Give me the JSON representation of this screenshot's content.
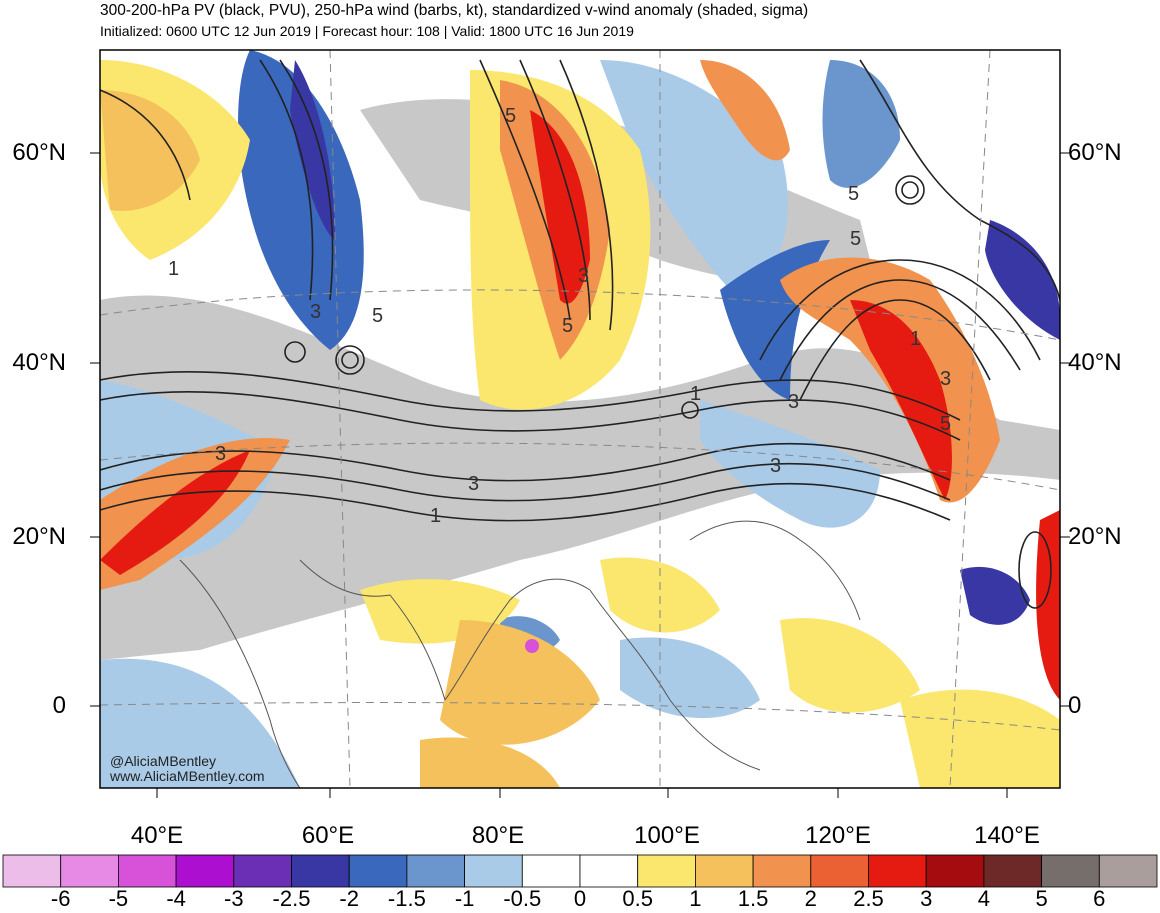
{
  "header": {
    "title": "300-200-hPa PV (black, PVU), 250-hPa wind (barbs, kt), standardized v-wind anomaly (shaded, sigma)",
    "subtitle": "Initialized: 0600 UTC 12 Jun 2019 | Forecast hour: 108 | Valid: 1800 UTC 16 Jun 2019"
  },
  "map": {
    "lat_labels": [
      "60°N",
      "40°N",
      "20°N",
      "0"
    ],
    "lon_labels": [
      "40°E",
      "60°E",
      "80°E",
      "100°E",
      "120°E",
      "140°E"
    ],
    "contour_labels": [
      "1",
      "3",
      "5"
    ],
    "credit_handle": "@AliciaMBentley",
    "credit_url": "www.AliciaMBentley.com"
  },
  "colorbar": {
    "labels": [
      "-6",
      "-5",
      "-4",
      "-3",
      "-2.5",
      "-2",
      "-1.5",
      "-1",
      "-0.5",
      "0",
      "0.5",
      "1",
      "1.5",
      "2",
      "2.5",
      "3",
      "4",
      "5",
      "6"
    ],
    "colors": [
      "#ebbde8",
      "#e68ae5",
      "#d752d9",
      "#ad0fd0",
      "#6a2fb5",
      "#3837a4",
      "#3a68bc",
      "#6b95cd",
      "#a9cbe8",
      "#ffffff",
      "#ffffff",
      "#fbe66e",
      "#f4c15c",
      "#f1934e",
      "#ec6133",
      "#e51b12",
      "#a50c10",
      "#6d2928",
      "#766e6b",
      "#a99e9c"
    ]
  }
}
